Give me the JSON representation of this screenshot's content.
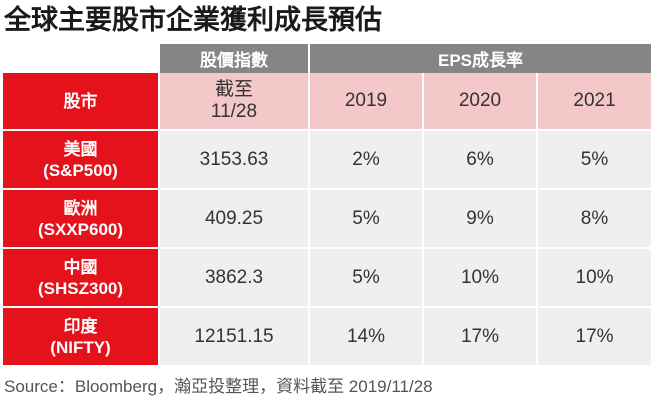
{
  "title": "全球主要股市企業獲利成長預估",
  "header": {
    "price_group": "股價指數",
    "eps_group": "EPS成長率"
  },
  "subheader": {
    "market_label": "股市",
    "price_line1": "截至",
    "price_line2": "11/28",
    "years": [
      "2019",
      "2020",
      "2021"
    ]
  },
  "rows": [
    {
      "name": "美國",
      "code": "(S&P500)",
      "price": "3153.63",
      "eps": [
        "2%",
        "6%",
        "5%"
      ]
    },
    {
      "name": "歐洲",
      "code": "(SXXP600)",
      "price": "409.25",
      "eps": [
        "5%",
        "9%",
        "8%"
      ]
    },
    {
      "name": "中國",
      "code": "(SHSZ300)",
      "price": "3862.3",
      "eps": [
        "5%",
        "10%",
        "10%"
      ]
    },
    {
      "name": "印度",
      "code": "(NIFTY)",
      "price": "12151.15",
      "eps": [
        "14%",
        "17%",
        "17%"
      ]
    }
  ],
  "source": "Source：Bloomberg，瀚亞投整理，資料截至 2019/11/28",
  "colors": {
    "header_gray": "#858585",
    "row_label_red": "#e5121c",
    "subheader_pink": "#f4c7c9",
    "cell_gray": "#efefef"
  }
}
